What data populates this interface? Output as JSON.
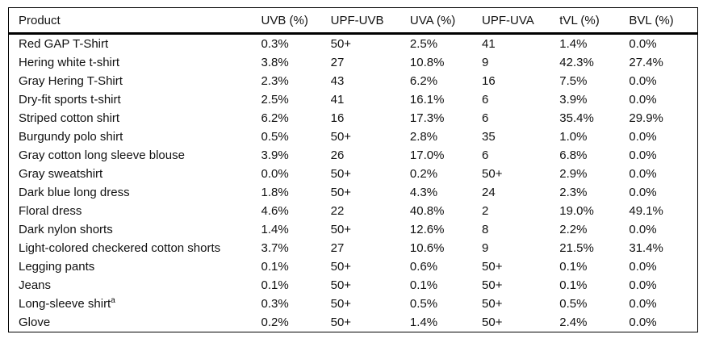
{
  "table": {
    "columns": [
      {
        "key": "product",
        "label": "Product"
      },
      {
        "key": "uvb",
        "label": "UVB (%)"
      },
      {
        "key": "upf_uvb",
        "label": "UPF-UVB"
      },
      {
        "key": "uva",
        "label": "UVA (%)"
      },
      {
        "key": "upf_uva",
        "label": "UPF-UVA"
      },
      {
        "key": "tvl",
        "label": "tVL (%)"
      },
      {
        "key": "bvl",
        "label": "BVL (%)"
      }
    ],
    "rows": [
      {
        "product": "Red GAP T-Shirt",
        "sup": "",
        "uvb": "0.3%",
        "upf_uvb": "50+",
        "uva": "2.5%",
        "upf_uva": "41",
        "tvl": "1.4%",
        "bvl": "0.0%"
      },
      {
        "product": "Hering white t-shirt",
        "sup": "",
        "uvb": "3.8%",
        "upf_uvb": "27",
        "uva": "10.8%",
        "upf_uva": "9",
        "tvl": "42.3%",
        "bvl": "27.4%"
      },
      {
        "product": "Gray Hering T-Shirt",
        "sup": "",
        "uvb": "2.3%",
        "upf_uvb": "43",
        "uva": "6.2%",
        "upf_uva": "16",
        "tvl": "7.5%",
        "bvl": "0.0%"
      },
      {
        "product": "Dry-fit sports t-shirt",
        "sup": "",
        "uvb": "2.5%",
        "upf_uvb": "41",
        "uva": "16.1%",
        "upf_uva": "6",
        "tvl": "3.9%",
        "bvl": "0.0%"
      },
      {
        "product": "Striped cotton shirt",
        "sup": "",
        "uvb": "6.2%",
        "upf_uvb": "16",
        "uva": "17.3%",
        "upf_uva": "6",
        "tvl": "35.4%",
        "bvl": "29.9%"
      },
      {
        "product": "Burgundy polo shirt",
        "sup": "",
        "uvb": "0.5%",
        "upf_uvb": "50+",
        "uva": "2.8%",
        "upf_uva": "35",
        "tvl": "1.0%",
        "bvl": "0.0%"
      },
      {
        "product": "Gray cotton long sleeve blouse",
        "sup": "",
        "uvb": "3.9%",
        "upf_uvb": "26",
        "uva": "17.0%",
        "upf_uva": "6",
        "tvl": "6.8%",
        "bvl": "0.0%"
      },
      {
        "product": "Gray sweatshirt",
        "sup": "",
        "uvb": "0.0%",
        "upf_uvb": "50+",
        "uva": "0.2%",
        "upf_uva": "50+",
        "tvl": "2.9%",
        "bvl": "0.0%"
      },
      {
        "product": "Dark blue long dress",
        "sup": "",
        "uvb": "1.8%",
        "upf_uvb": "50+",
        "uva": "4.3%",
        "upf_uva": "24",
        "tvl": "2.3%",
        "bvl": "0.0%"
      },
      {
        "product": "Floral dress",
        "sup": "",
        "uvb": "4.6%",
        "upf_uvb": "22",
        "uva": "40.8%",
        "upf_uva": "2",
        "tvl": "19.0%",
        "bvl": "49.1%"
      },
      {
        "product": "Dark nylon shorts",
        "sup": "",
        "uvb": "1.4%",
        "upf_uvb": "50+",
        "uva": "12.6%",
        "upf_uva": "8",
        "tvl": "2.2%",
        "bvl": "0.0%"
      },
      {
        "product": "Light-colored checkered cotton shorts",
        "sup": "",
        "uvb": "3.7%",
        "upf_uvb": "27",
        "uva": "10.6%",
        "upf_uva": "9",
        "tvl": "21.5%",
        "bvl": "31.4%"
      },
      {
        "product": "Legging pants",
        "sup": "",
        "uvb": "0.1%",
        "upf_uvb": "50+",
        "uva": "0.6%",
        "upf_uva": "50+",
        "tvl": "0.1%",
        "bvl": "0.0%"
      },
      {
        "product": "Jeans",
        "sup": "",
        "uvb": "0.1%",
        "upf_uvb": "50+",
        "uva": "0.1%",
        "upf_uva": "50+",
        "tvl": "0.1%",
        "bvl": "0.0%"
      },
      {
        "product": "Long-sleeve shirt",
        "sup": "a",
        "uvb": "0.3%",
        "upf_uvb": "50+",
        "uva": "0.5%",
        "upf_uva": "50+",
        "tvl": "0.5%",
        "bvl": "0.0%"
      },
      {
        "product": "Glove",
        "sup": "",
        "uvb": "0.2%",
        "upf_uvb": "50+",
        "uva": "1.4%",
        "upf_uva": "50+",
        "tvl": "2.4%",
        "bvl": "0.0%"
      }
    ]
  }
}
